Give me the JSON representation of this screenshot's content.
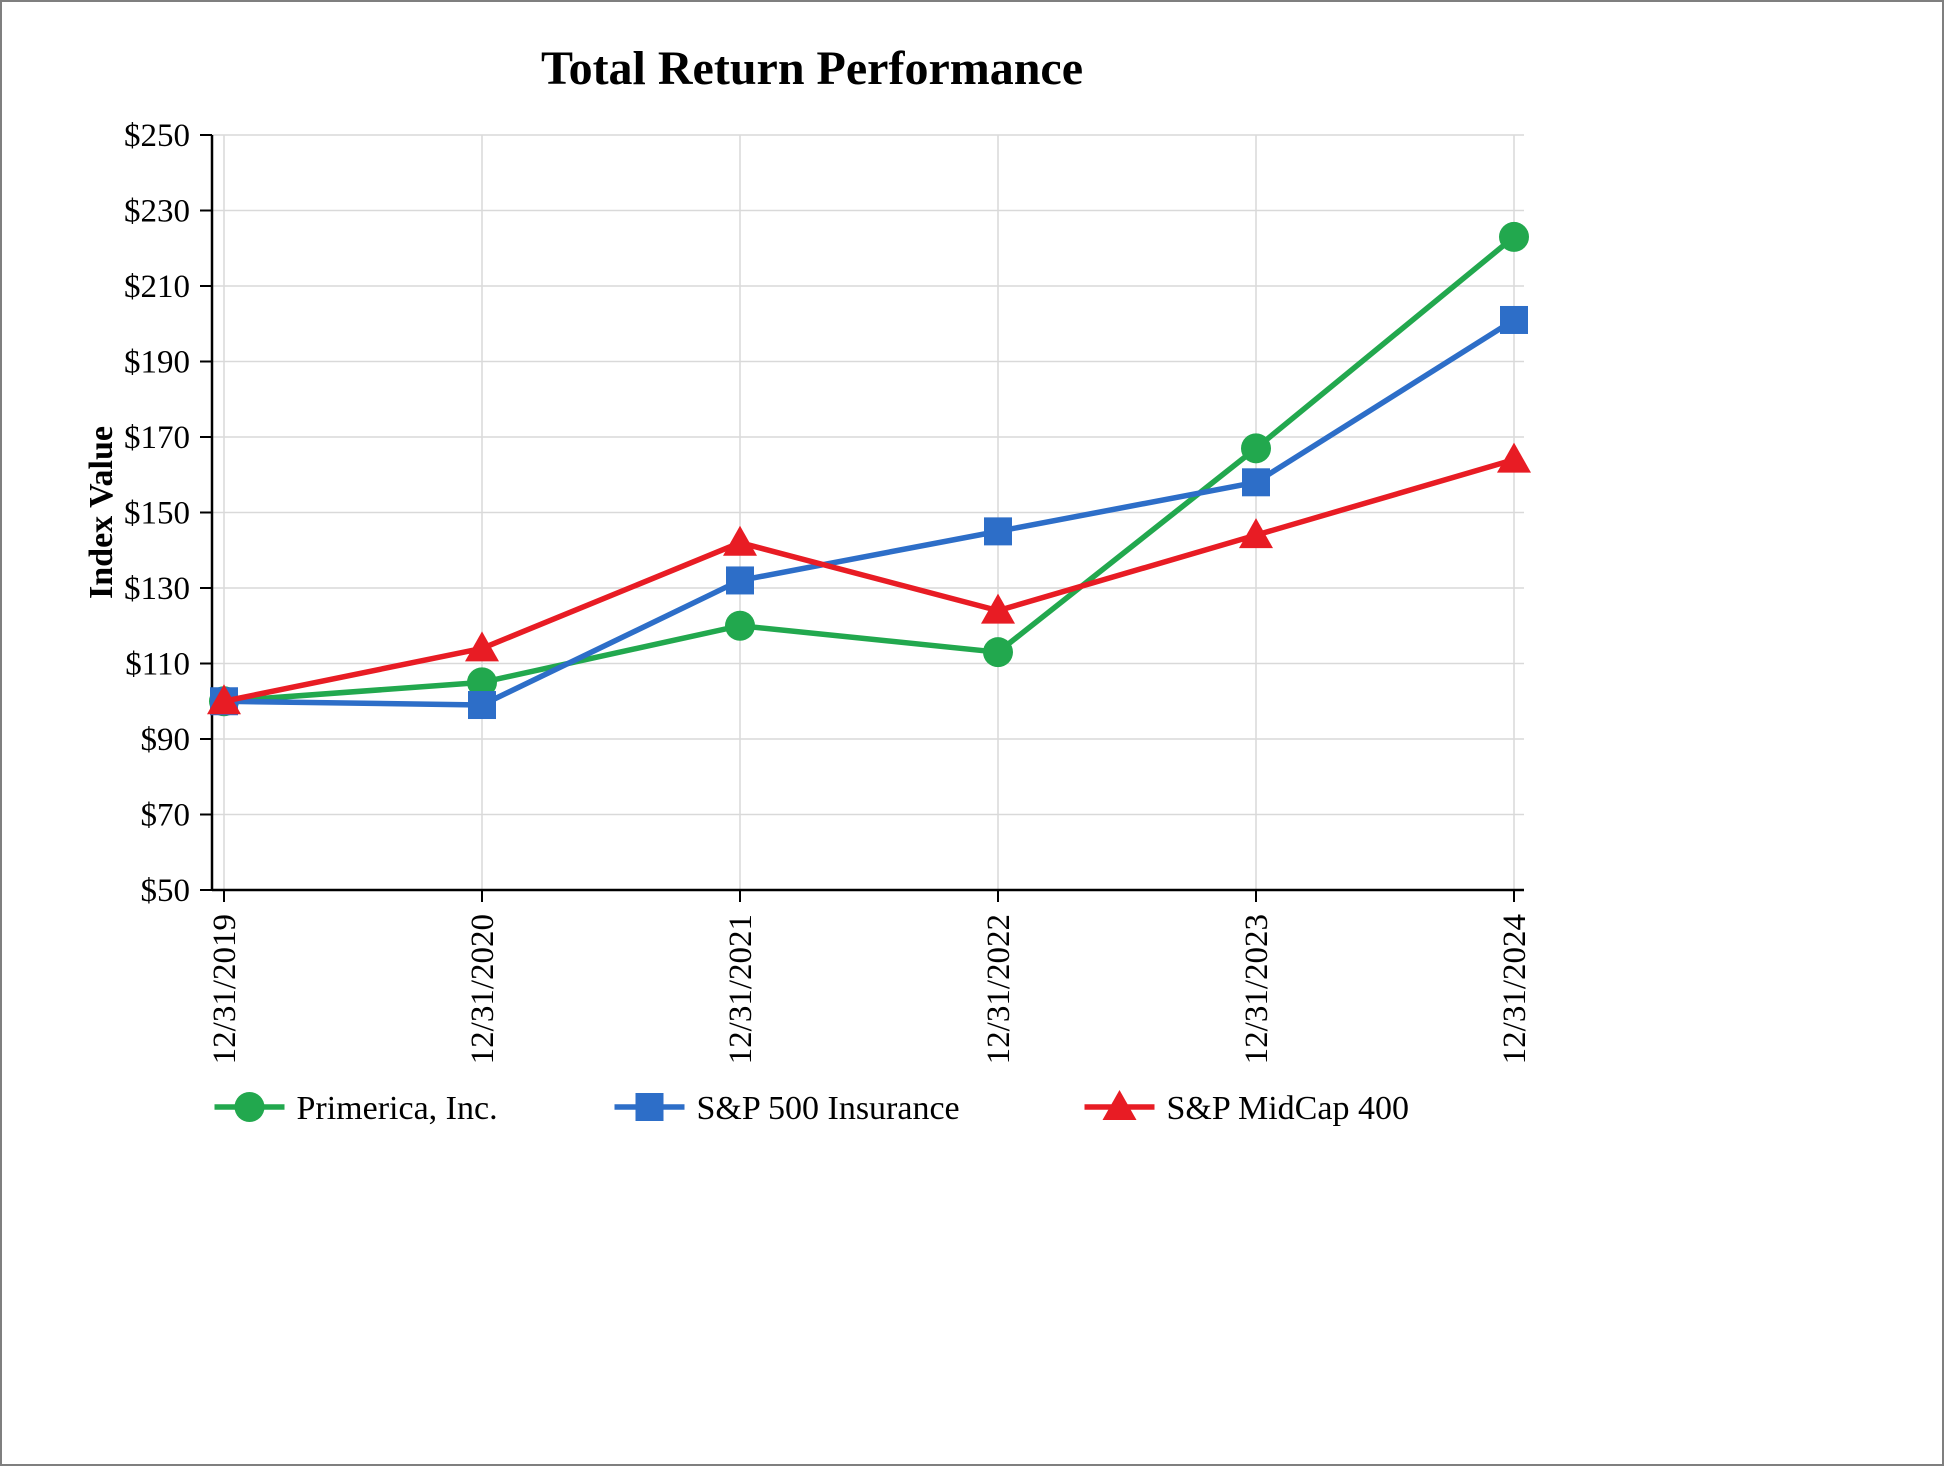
{
  "chart_data": {
    "type": "line",
    "title": "Total Return Performance",
    "ylabel": "Index Value",
    "xlabel": "",
    "categories": [
      "12/31/2019",
      "12/31/2020",
      "12/31/2021",
      "12/31/2022",
      "12/31/2023",
      "12/31/2024"
    ],
    "ylim": [
      50,
      250
    ],
    "ytick_step": 20,
    "ytick_prefix": "$",
    "grid": true,
    "legend_position": "bottom",
    "series": [
      {
        "name": "Primerica, Inc.",
        "marker": "circle",
        "color": "#22a84e",
        "values": [
          100,
          105,
          120,
          113,
          167,
          223
        ]
      },
      {
        "name": "S&P 500 Insurance",
        "marker": "square",
        "color": "#2d6ec8",
        "values": [
          100,
          99,
          132,
          145,
          158,
          201
        ]
      },
      {
        "name": "S&P MidCap 400",
        "marker": "triangle",
        "color": "#e81c24",
        "values": [
          100,
          114,
          142,
          124,
          144,
          164
        ]
      }
    ]
  }
}
